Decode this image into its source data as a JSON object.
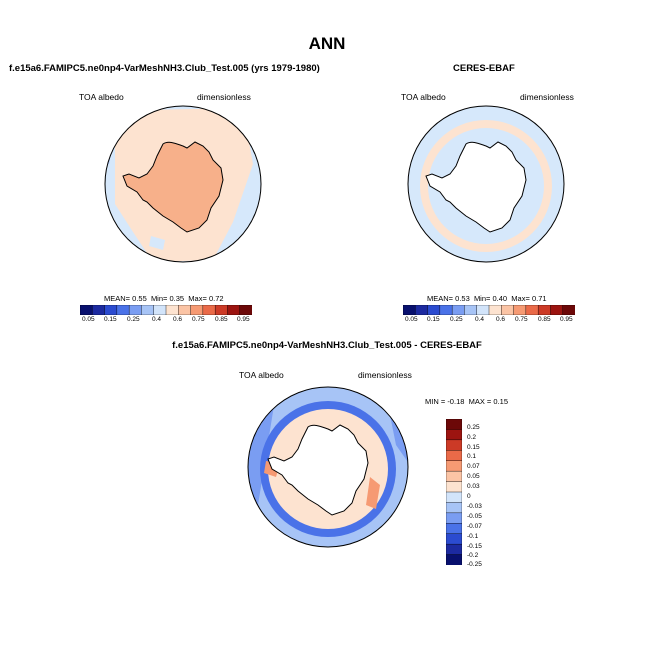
{
  "page": {
    "title": "ANN"
  },
  "colors": {
    "abs": [
      "#08106e",
      "#1c2aa0",
      "#2b4bd0",
      "#4a72e8",
      "#7a9df2",
      "#a7c4f6",
      "#d2e4fa",
      "#fde3d0",
      "#fbc4a5",
      "#f69a73",
      "#ea6a48",
      "#cc3a26",
      "#9c1410",
      "#6c0808"
    ],
    "diff": [
      "#08106e",
      "#1c2aa0",
      "#2b4bd0",
      "#4a72e8",
      "#7a9df2",
      "#a7c4f6",
      "#d2e4fa",
      "#fde3d0",
      "#fbc4a5",
      "#f69a73",
      "#ea6a48",
      "#cc3a26",
      "#9c1410",
      "#6c0808"
    ],
    "land": "#ffffff",
    "coast": "#000000"
  },
  "panel1": {
    "subtitle": "f.e15a6.FAMIPC5.ne0np4-VarMeshNH3.Club_Test.005 (yrs 1979-1980)",
    "left_label": "TOA albedo",
    "right_label": "dimensionless",
    "mean_label": "MEAN=",
    "mean": "0.55",
    "min_label": "Min=",
    "min": "0.35",
    "max_label": "Max=",
    "max": "0.72"
  },
  "panel2": {
    "subtitle": "CERES-EBAF",
    "left_label": "TOA albedo",
    "right_label": "dimensionless",
    "mean_label": "MEAN=",
    "mean": "0.53",
    "min_label": "Min=",
    "min": "0.40",
    "max_label": "Max=",
    "max": "0.71"
  },
  "panel3": {
    "subtitle": "f.e15a6.FAMIPC5.ne0np4-VarMeshNH3.Club_Test.005 - CERES-EBAF",
    "left_label": "TOA albedo",
    "right_label": "dimensionless",
    "min_label": "MIN =",
    "min": "-0.18",
    "max_label": "MAX =",
    "max": "0.15"
  },
  "colorbar_abs": {
    "ticks": [
      "0.05",
      "0.15",
      "0.25",
      "0.4",
      "0.6",
      "0.75",
      "0.85",
      "0.95"
    ]
  },
  "colorbar_diff": {
    "ticks": [
      "0.25",
      "0.2",
      "0.15",
      "0.1",
      "0.07",
      "0.05",
      "0.03",
      "0",
      "-0.03",
      "-0.05",
      "-0.07",
      "-0.1",
      "-0.15",
      "-0.2",
      "-0.25"
    ]
  }
}
